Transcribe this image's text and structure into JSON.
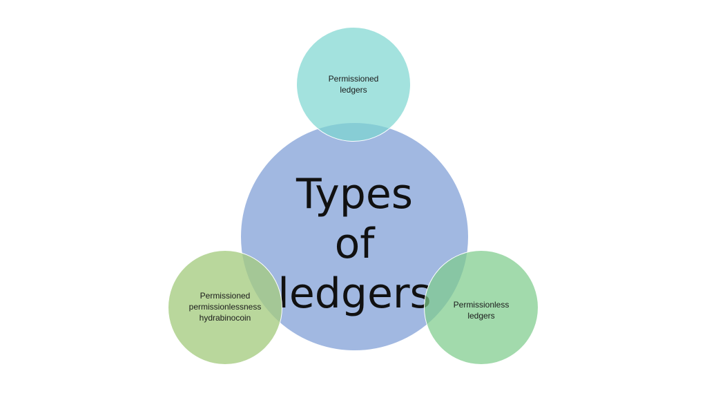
{
  "diagram": {
    "center": {
      "label": "Types\nof\nledgers",
      "color": "#8ca8da"
    },
    "nodes": [
      {
        "position": "top",
        "label": "Permissioned\nledgers",
        "color": "#7cd6d0"
      },
      {
        "position": "bottom-left",
        "label": "Permissioned\npermissionlessness\nhydrabinocoin",
        "color": "#a5cc80"
      },
      {
        "position": "bottom-right",
        "label": "Permissionless\nledgers",
        "color": "#7ecc8c"
      }
    ]
  }
}
